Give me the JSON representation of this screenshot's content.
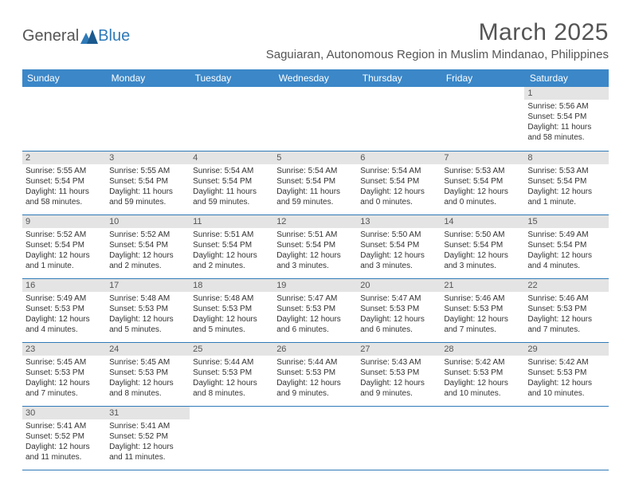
{
  "brand": {
    "general": "General",
    "blue": "Blue",
    "general_color": "#555555",
    "blue_color": "#2f7ab8"
  },
  "header": {
    "month_title": "March 2025",
    "location": "Saguiaran, Autonomous Region in Muslim Mindanao, Philippines"
  },
  "colors": {
    "header_bg": "#3b87c8",
    "header_text": "#ffffff",
    "daynum_bg": "#e4e4e4",
    "row_border": "#2f7ab8",
    "text": "#333333"
  },
  "weekdays": [
    "Sunday",
    "Monday",
    "Tuesday",
    "Wednesday",
    "Thursday",
    "Friday",
    "Saturday"
  ],
  "days": {
    "1": {
      "sunrise": "Sunrise: 5:56 AM",
      "sunset": "Sunset: 5:54 PM",
      "daylight1": "Daylight: 11 hours",
      "daylight2": "and 58 minutes."
    },
    "2": {
      "sunrise": "Sunrise: 5:55 AM",
      "sunset": "Sunset: 5:54 PM",
      "daylight1": "Daylight: 11 hours",
      "daylight2": "and 58 minutes."
    },
    "3": {
      "sunrise": "Sunrise: 5:55 AM",
      "sunset": "Sunset: 5:54 PM",
      "daylight1": "Daylight: 11 hours",
      "daylight2": "and 59 minutes."
    },
    "4": {
      "sunrise": "Sunrise: 5:54 AM",
      "sunset": "Sunset: 5:54 PM",
      "daylight1": "Daylight: 11 hours",
      "daylight2": "and 59 minutes."
    },
    "5": {
      "sunrise": "Sunrise: 5:54 AM",
      "sunset": "Sunset: 5:54 PM",
      "daylight1": "Daylight: 11 hours",
      "daylight2": "and 59 minutes."
    },
    "6": {
      "sunrise": "Sunrise: 5:54 AM",
      "sunset": "Sunset: 5:54 PM",
      "daylight1": "Daylight: 12 hours",
      "daylight2": "and 0 minutes."
    },
    "7": {
      "sunrise": "Sunrise: 5:53 AM",
      "sunset": "Sunset: 5:54 PM",
      "daylight1": "Daylight: 12 hours",
      "daylight2": "and 0 minutes."
    },
    "8": {
      "sunrise": "Sunrise: 5:53 AM",
      "sunset": "Sunset: 5:54 PM",
      "daylight1": "Daylight: 12 hours",
      "daylight2": "and 1 minute."
    },
    "9": {
      "sunrise": "Sunrise: 5:52 AM",
      "sunset": "Sunset: 5:54 PM",
      "daylight1": "Daylight: 12 hours",
      "daylight2": "and 1 minute."
    },
    "10": {
      "sunrise": "Sunrise: 5:52 AM",
      "sunset": "Sunset: 5:54 PM",
      "daylight1": "Daylight: 12 hours",
      "daylight2": "and 2 minutes."
    },
    "11": {
      "sunrise": "Sunrise: 5:51 AM",
      "sunset": "Sunset: 5:54 PM",
      "daylight1": "Daylight: 12 hours",
      "daylight2": "and 2 minutes."
    },
    "12": {
      "sunrise": "Sunrise: 5:51 AM",
      "sunset": "Sunset: 5:54 PM",
      "daylight1": "Daylight: 12 hours",
      "daylight2": "and 3 minutes."
    },
    "13": {
      "sunrise": "Sunrise: 5:50 AM",
      "sunset": "Sunset: 5:54 PM",
      "daylight1": "Daylight: 12 hours",
      "daylight2": "and 3 minutes."
    },
    "14": {
      "sunrise": "Sunrise: 5:50 AM",
      "sunset": "Sunset: 5:54 PM",
      "daylight1": "Daylight: 12 hours",
      "daylight2": "and 3 minutes."
    },
    "15": {
      "sunrise": "Sunrise: 5:49 AM",
      "sunset": "Sunset: 5:54 PM",
      "daylight1": "Daylight: 12 hours",
      "daylight2": "and 4 minutes."
    },
    "16": {
      "sunrise": "Sunrise: 5:49 AM",
      "sunset": "Sunset: 5:53 PM",
      "daylight1": "Daylight: 12 hours",
      "daylight2": "and 4 minutes."
    },
    "17": {
      "sunrise": "Sunrise: 5:48 AM",
      "sunset": "Sunset: 5:53 PM",
      "daylight1": "Daylight: 12 hours",
      "daylight2": "and 5 minutes."
    },
    "18": {
      "sunrise": "Sunrise: 5:48 AM",
      "sunset": "Sunset: 5:53 PM",
      "daylight1": "Daylight: 12 hours",
      "daylight2": "and 5 minutes."
    },
    "19": {
      "sunrise": "Sunrise: 5:47 AM",
      "sunset": "Sunset: 5:53 PM",
      "daylight1": "Daylight: 12 hours",
      "daylight2": "and 6 minutes."
    },
    "20": {
      "sunrise": "Sunrise: 5:47 AM",
      "sunset": "Sunset: 5:53 PM",
      "daylight1": "Daylight: 12 hours",
      "daylight2": "and 6 minutes."
    },
    "21": {
      "sunrise": "Sunrise: 5:46 AM",
      "sunset": "Sunset: 5:53 PM",
      "daylight1": "Daylight: 12 hours",
      "daylight2": "and 7 minutes."
    },
    "22": {
      "sunrise": "Sunrise: 5:46 AM",
      "sunset": "Sunset: 5:53 PM",
      "daylight1": "Daylight: 12 hours",
      "daylight2": "and 7 minutes."
    },
    "23": {
      "sunrise": "Sunrise: 5:45 AM",
      "sunset": "Sunset: 5:53 PM",
      "daylight1": "Daylight: 12 hours",
      "daylight2": "and 7 minutes."
    },
    "24": {
      "sunrise": "Sunrise: 5:45 AM",
      "sunset": "Sunset: 5:53 PM",
      "daylight1": "Daylight: 12 hours",
      "daylight2": "and 8 minutes."
    },
    "25": {
      "sunrise": "Sunrise: 5:44 AM",
      "sunset": "Sunset: 5:53 PM",
      "daylight1": "Daylight: 12 hours",
      "daylight2": "and 8 minutes."
    },
    "26": {
      "sunrise": "Sunrise: 5:44 AM",
      "sunset": "Sunset: 5:53 PM",
      "daylight1": "Daylight: 12 hours",
      "daylight2": "and 9 minutes."
    },
    "27": {
      "sunrise": "Sunrise: 5:43 AM",
      "sunset": "Sunset: 5:53 PM",
      "daylight1": "Daylight: 12 hours",
      "daylight2": "and 9 minutes."
    },
    "28": {
      "sunrise": "Sunrise: 5:42 AM",
      "sunset": "Sunset: 5:53 PM",
      "daylight1": "Daylight: 12 hours",
      "daylight2": "and 10 minutes."
    },
    "29": {
      "sunrise": "Sunrise: 5:42 AM",
      "sunset": "Sunset: 5:53 PM",
      "daylight1": "Daylight: 12 hours",
      "daylight2": "and 10 minutes."
    },
    "30": {
      "sunrise": "Sunrise: 5:41 AM",
      "sunset": "Sunset: 5:52 PM",
      "daylight1": "Daylight: 12 hours",
      "daylight2": "and 11 minutes."
    },
    "31": {
      "sunrise": "Sunrise: 5:41 AM",
      "sunset": "Sunset: 5:52 PM",
      "daylight1": "Daylight: 12 hours",
      "daylight2": "and 11 minutes."
    }
  },
  "grid": [
    [
      null,
      null,
      null,
      null,
      null,
      null,
      "1"
    ],
    [
      "2",
      "3",
      "4",
      "5",
      "6",
      "7",
      "8"
    ],
    [
      "9",
      "10",
      "11",
      "12",
      "13",
      "14",
      "15"
    ],
    [
      "16",
      "17",
      "18",
      "19",
      "20",
      "21",
      "22"
    ],
    [
      "23",
      "24",
      "25",
      "26",
      "27",
      "28",
      "29"
    ],
    [
      "30",
      "31",
      null,
      null,
      null,
      null,
      null
    ]
  ]
}
